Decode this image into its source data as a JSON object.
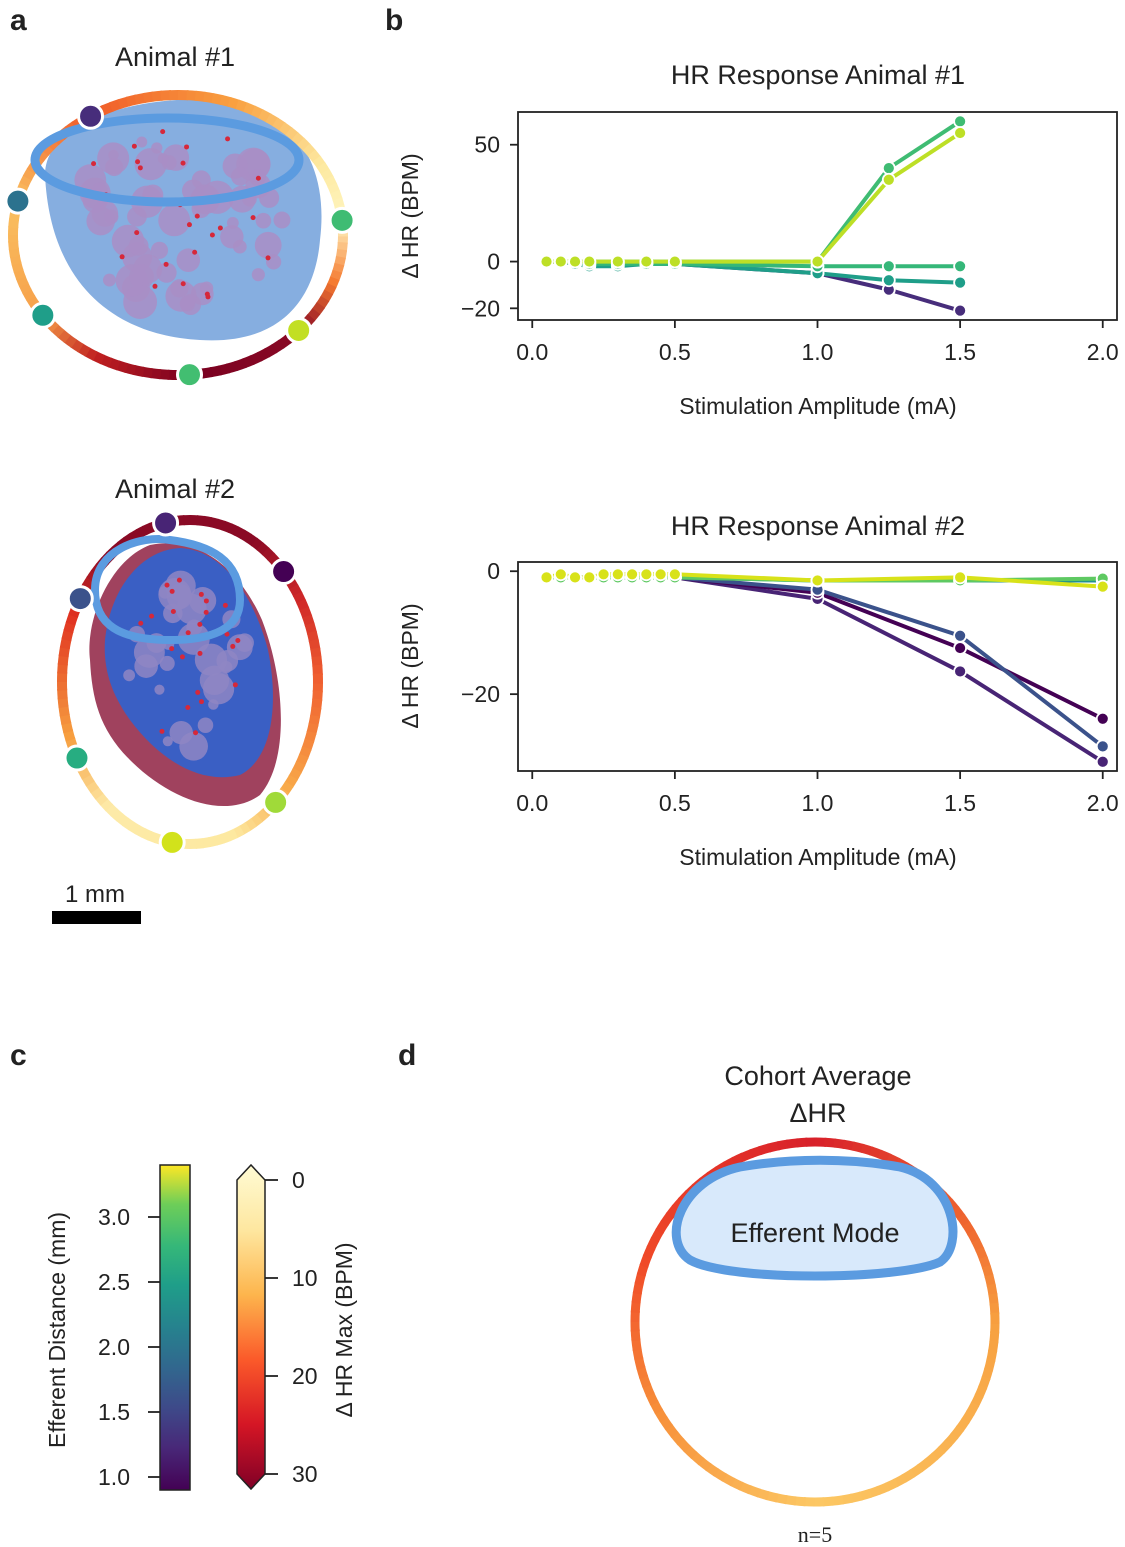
{
  "panel_labels": {
    "a": "a",
    "b": "b",
    "c": "c",
    "d": "d"
  },
  "panel_a": {
    "animal1_title": "Animal #1",
    "animal2_title": "Animal #2",
    "scale_bar_label": "1 mm",
    "animal1_contact_colors": [
      "#472d7b",
      "#2c728e",
      "#3fbc73",
      "#1f9e89",
      "#42be71",
      "#c2df23"
    ],
    "animal2_contact_colors": [
      "#482475",
      "#3b528b",
      "#440154",
      "#27ad81",
      "#d2e21b",
      "#a0da39"
    ],
    "efferent_outline_color": "#5b9be0"
  },
  "chart_data": [
    {
      "type": "line",
      "title": "HR Response Animal #1",
      "xlabel": "Stimulation Amplitude (mA)",
      "ylabel": "Δ HR (BPM)",
      "xlim": [
        -0.05,
        2.05
      ],
      "ylim": [
        -25,
        64
      ],
      "xticks": [
        "0.0",
        "0.5",
        "1.0",
        "1.5",
        "2.0"
      ],
      "yticks": [
        "-20",
        "0",
        "50"
      ],
      "grid": false,
      "x": [
        0.05,
        0.1,
        0.15,
        0.2,
        0.3,
        0.4,
        0.5,
        1.0,
        1.25,
        1.5
      ],
      "series": [
        {
          "color": "#472d7b",
          "values": [
            0,
            0,
            -1,
            -1,
            -1,
            -1,
            -1,
            -5,
            -12,
            -21
          ]
        },
        {
          "color": "#1f9e89",
          "values": [
            0,
            0,
            -1,
            -2,
            -2,
            -1,
            -1,
            -5,
            -8,
            -9
          ]
        },
        {
          "color": "#35b779",
          "values": [
            0,
            0,
            0,
            -1,
            -1,
            -1,
            -1,
            -2,
            -2,
            -2
          ]
        },
        {
          "color": "#3fbc73",
          "values": [
            0,
            0,
            0,
            0,
            0,
            0,
            0,
            0,
            40,
            60
          ]
        },
        {
          "color": "#bddf26",
          "values": [
            0,
            0,
            0,
            0,
            0,
            0,
            0,
            0,
            35,
            55
          ]
        }
      ]
    },
    {
      "type": "line",
      "title": "HR Response Animal #2",
      "xlabel": "Stimulation Amplitude (mA)",
      "ylabel": "Δ HR (BPM)",
      "xlim": [
        -0.05,
        2.05
      ],
      "ylim": [
        -32.5,
        1.5
      ],
      "xticks": [
        "0.0",
        "0.5",
        "1.0",
        "1.5",
        "2.0"
      ],
      "yticks": [
        "-20",
        "0"
      ],
      "grid": false,
      "x": [
        0.05,
        0.1,
        0.15,
        0.2,
        0.25,
        0.3,
        0.35,
        0.4,
        0.45,
        0.5,
        1.0,
        1.5,
        2.0
      ],
      "series": [
        {
          "color": "#482475",
          "values": [
            -1,
            -1,
            -1,
            -1,
            -1,
            -1,
            -1,
            -1,
            -1,
            -1,
            -4.5,
            -16.3,
            -31
          ]
        },
        {
          "color": "#440154",
          "values": [
            -1,
            -1,
            -1,
            -1,
            -1,
            -1,
            -1,
            -1,
            -1,
            -1,
            -3.5,
            -12.5,
            -24
          ]
        },
        {
          "color": "#3b528b",
          "values": [
            -1,
            -1,
            -1,
            -1,
            -1,
            -1,
            -1,
            -1,
            -1,
            -1,
            -3,
            -10.5,
            -28.5
          ]
        },
        {
          "color": "#21918c",
          "values": [
            -1,
            -1,
            -1,
            -1,
            -1,
            -1,
            -1,
            -1,
            -1,
            -1,
            -1.5,
            -1.5,
            -1.5
          ]
        },
        {
          "color": "#5ec962",
          "values": [
            -1,
            -1,
            -1,
            -1,
            -1,
            -1,
            -1,
            -1,
            -1,
            -1,
            -1.5,
            -1.5,
            -1.2
          ]
        },
        {
          "color": "#d8e219",
          "values": [
            -1,
            -0.5,
            -1,
            -1,
            -0.5,
            -0.5,
            -0.5,
            -0.5,
            -0.5,
            -0.5,
            -1.5,
            -1,
            -2.5
          ]
        }
      ]
    }
  ],
  "panel_c": {
    "colorbar1": {
      "label": "Efferent Distance (mm)",
      "range": [
        0.95,
        3.4
      ],
      "ticks": [
        "1.0",
        "1.5",
        "2.0",
        "2.5",
        "3.0"
      ],
      "colormap": "viridis"
    },
    "colorbar2": {
      "label": "Δ HR Max (BPM)",
      "range": [
        0,
        30
      ],
      "ticks": [
        "0",
        "10",
        "20",
        "30"
      ],
      "colormap": "YlOrRd",
      "extend": "both"
    }
  },
  "panel_d": {
    "title_line1": "Cohort Average",
    "title_line2": "ΔHR",
    "mode_label": "Efferent Mode",
    "n_label": "n=5"
  }
}
